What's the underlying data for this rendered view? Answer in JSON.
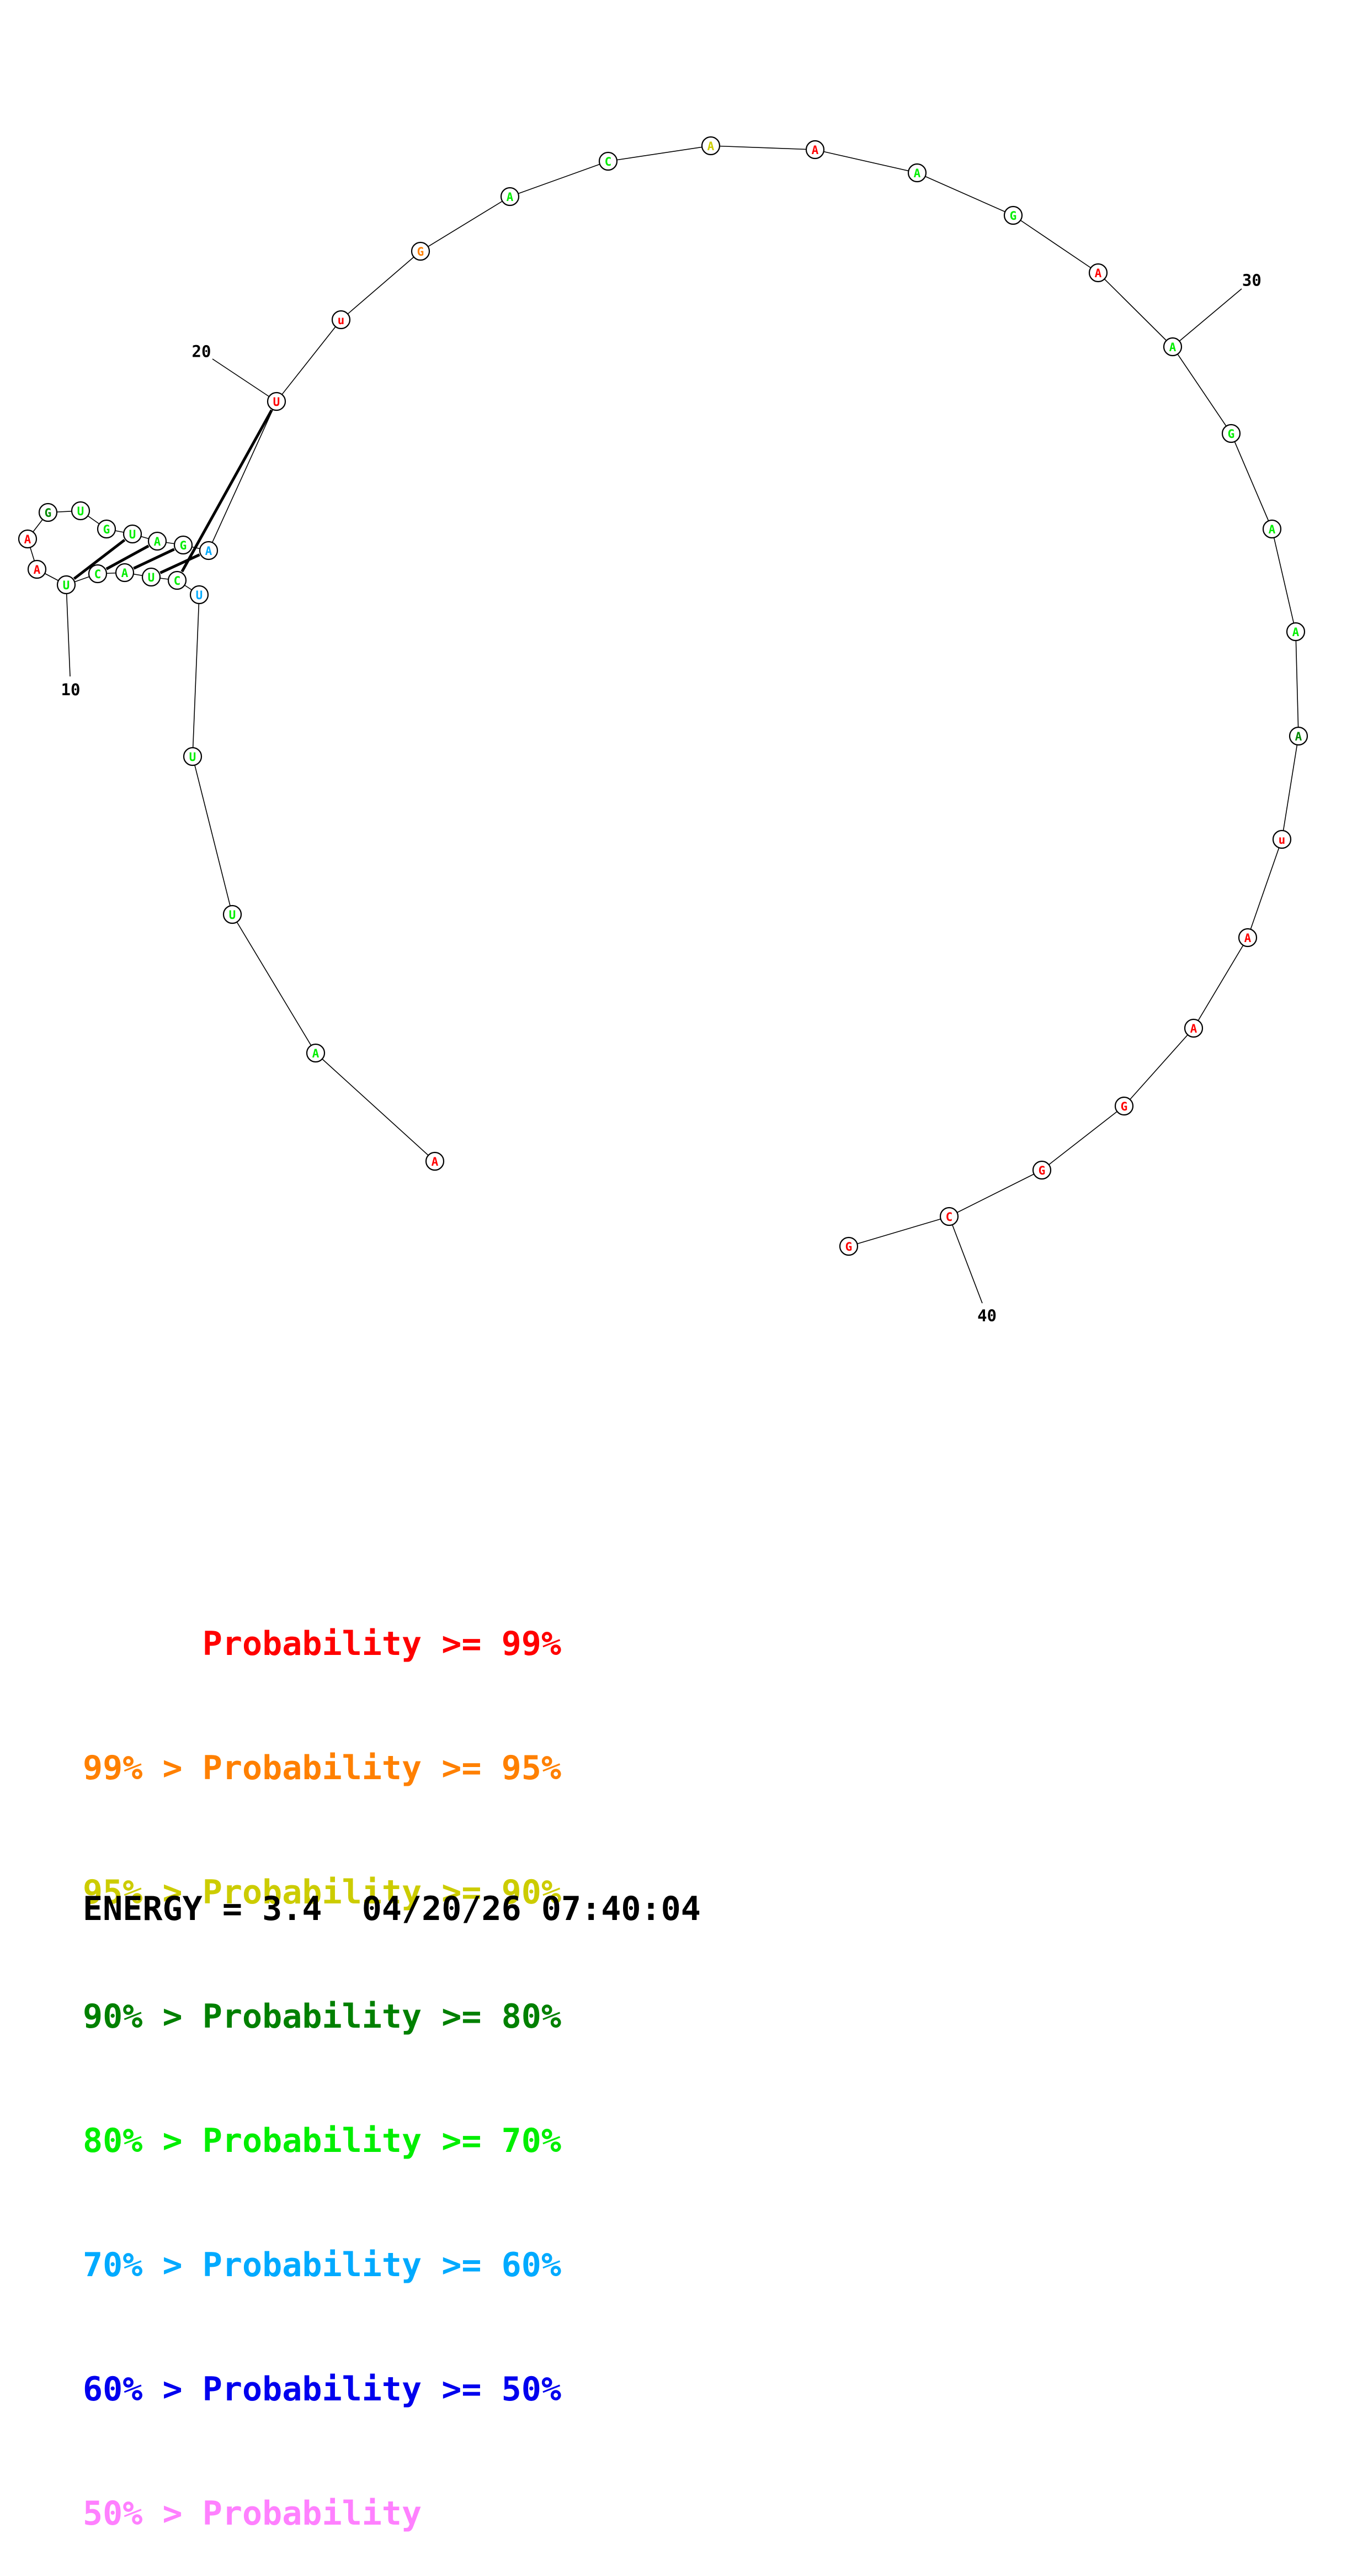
{
  "structure": {
    "nucleotides": [
      {
        "letter": "A",
        "color": "#ff0000"
      },
      {
        "letter": "A",
        "color": "#00ee00"
      },
      {
        "letter": "U",
        "color": "#00ee00"
      },
      {
        "letter": "U",
        "color": "#00ee00"
      },
      {
        "letter": "U",
        "color": "#00aaff"
      },
      {
        "letter": "C",
        "color": "#00ee00"
      },
      {
        "letter": "U",
        "color": "#00ee00"
      },
      {
        "letter": "A",
        "color": "#00ee00"
      },
      {
        "letter": "C",
        "color": "#00ee00"
      },
      {
        "letter": "U",
        "color": "#00ee00"
      },
      {
        "letter": "A",
        "color": "#ff0000"
      },
      {
        "letter": "A",
        "color": "#ff0000"
      },
      {
        "letter": "G",
        "color": "#008800"
      },
      {
        "letter": "U",
        "color": "#00ee00"
      },
      {
        "letter": "G",
        "color": "#00ee00"
      },
      {
        "letter": "U",
        "color": "#00ee00"
      },
      {
        "letter": "A",
        "color": "#00ee00"
      },
      {
        "letter": "G",
        "color": "#00ee00"
      },
      {
        "letter": "A",
        "color": "#00aaff"
      },
      {
        "letter": "U",
        "color": "#ff0000"
      },
      {
        "letter": "u",
        "color": "#ff0000"
      },
      {
        "letter": "G",
        "color": "#ff8000"
      },
      {
        "letter": "A",
        "color": "#00ee00"
      },
      {
        "letter": "C",
        "color": "#00ee00"
      },
      {
        "letter": "A",
        "color": "#cccc00"
      },
      {
        "letter": "A",
        "color": "#ff0000"
      },
      {
        "letter": "A",
        "color": "#00ee00"
      },
      {
        "letter": "G",
        "color": "#00ee00"
      },
      {
        "letter": "A",
        "color": "#ff0000"
      },
      {
        "letter": "A",
        "color": "#00ee00"
      },
      {
        "letter": "G",
        "color": "#00ee00"
      },
      {
        "letter": "A",
        "color": "#00ee00"
      },
      {
        "letter": "A",
        "color": "#00ee00"
      },
      {
        "letter": "A",
        "color": "#008800"
      },
      {
        "letter": "u",
        "color": "#ff0000"
      },
      {
        "letter": "A",
        "color": "#ff0000"
      },
      {
        "letter": "A",
        "color": "#ff0000"
      },
      {
        "letter": "G",
        "color": "#ff0000"
      },
      {
        "letter": "G",
        "color": "#ff0000"
      },
      {
        "letter": "C",
        "color": "#ff0000"
      },
      {
        "letter": "G",
        "color": "#ff0000"
      }
    ],
    "pairs": [
      [
        5,
        19
      ],
      [
        6,
        18
      ],
      [
        7,
        17
      ],
      [
        8,
        16
      ],
      [
        9,
        15
      ]
    ],
    "ticks": [
      {
        "index": 10,
        "label": "10"
      },
      {
        "index": 20,
        "label": "20"
      },
      {
        "index": 30,
        "label": "30"
      },
      {
        "index": 40,
        "label": "40"
      }
    ]
  },
  "legend": [
    {
      "prefix": "      ",
      "text": "Probability >= 99%",
      "color": "#ff0000"
    },
    {
      "prefix": "",
      "text": "99% > Probability >= 95%",
      "color": "#ff8000"
    },
    {
      "prefix": "",
      "text": "95% > Probability >= 90%",
      "color": "#cccc00"
    },
    {
      "prefix": "",
      "text": "90% > Probability >= 80%",
      "color": "#008000"
    },
    {
      "prefix": "",
      "text": "80% > Probability >= 70%",
      "color": "#00ee00"
    },
    {
      "prefix": "",
      "text": "70% > Probability >= 60%",
      "color": "#00aaff"
    },
    {
      "prefix": "",
      "text": "60% > Probability >= 50%",
      "color": "#0000ee"
    },
    {
      "prefix": "",
      "text": "50% > Probability",
      "color": "#ff80ff"
    }
  ],
  "footer": {
    "energy": "ENERGY = 3.4  04/20/26 07:40:04"
  }
}
